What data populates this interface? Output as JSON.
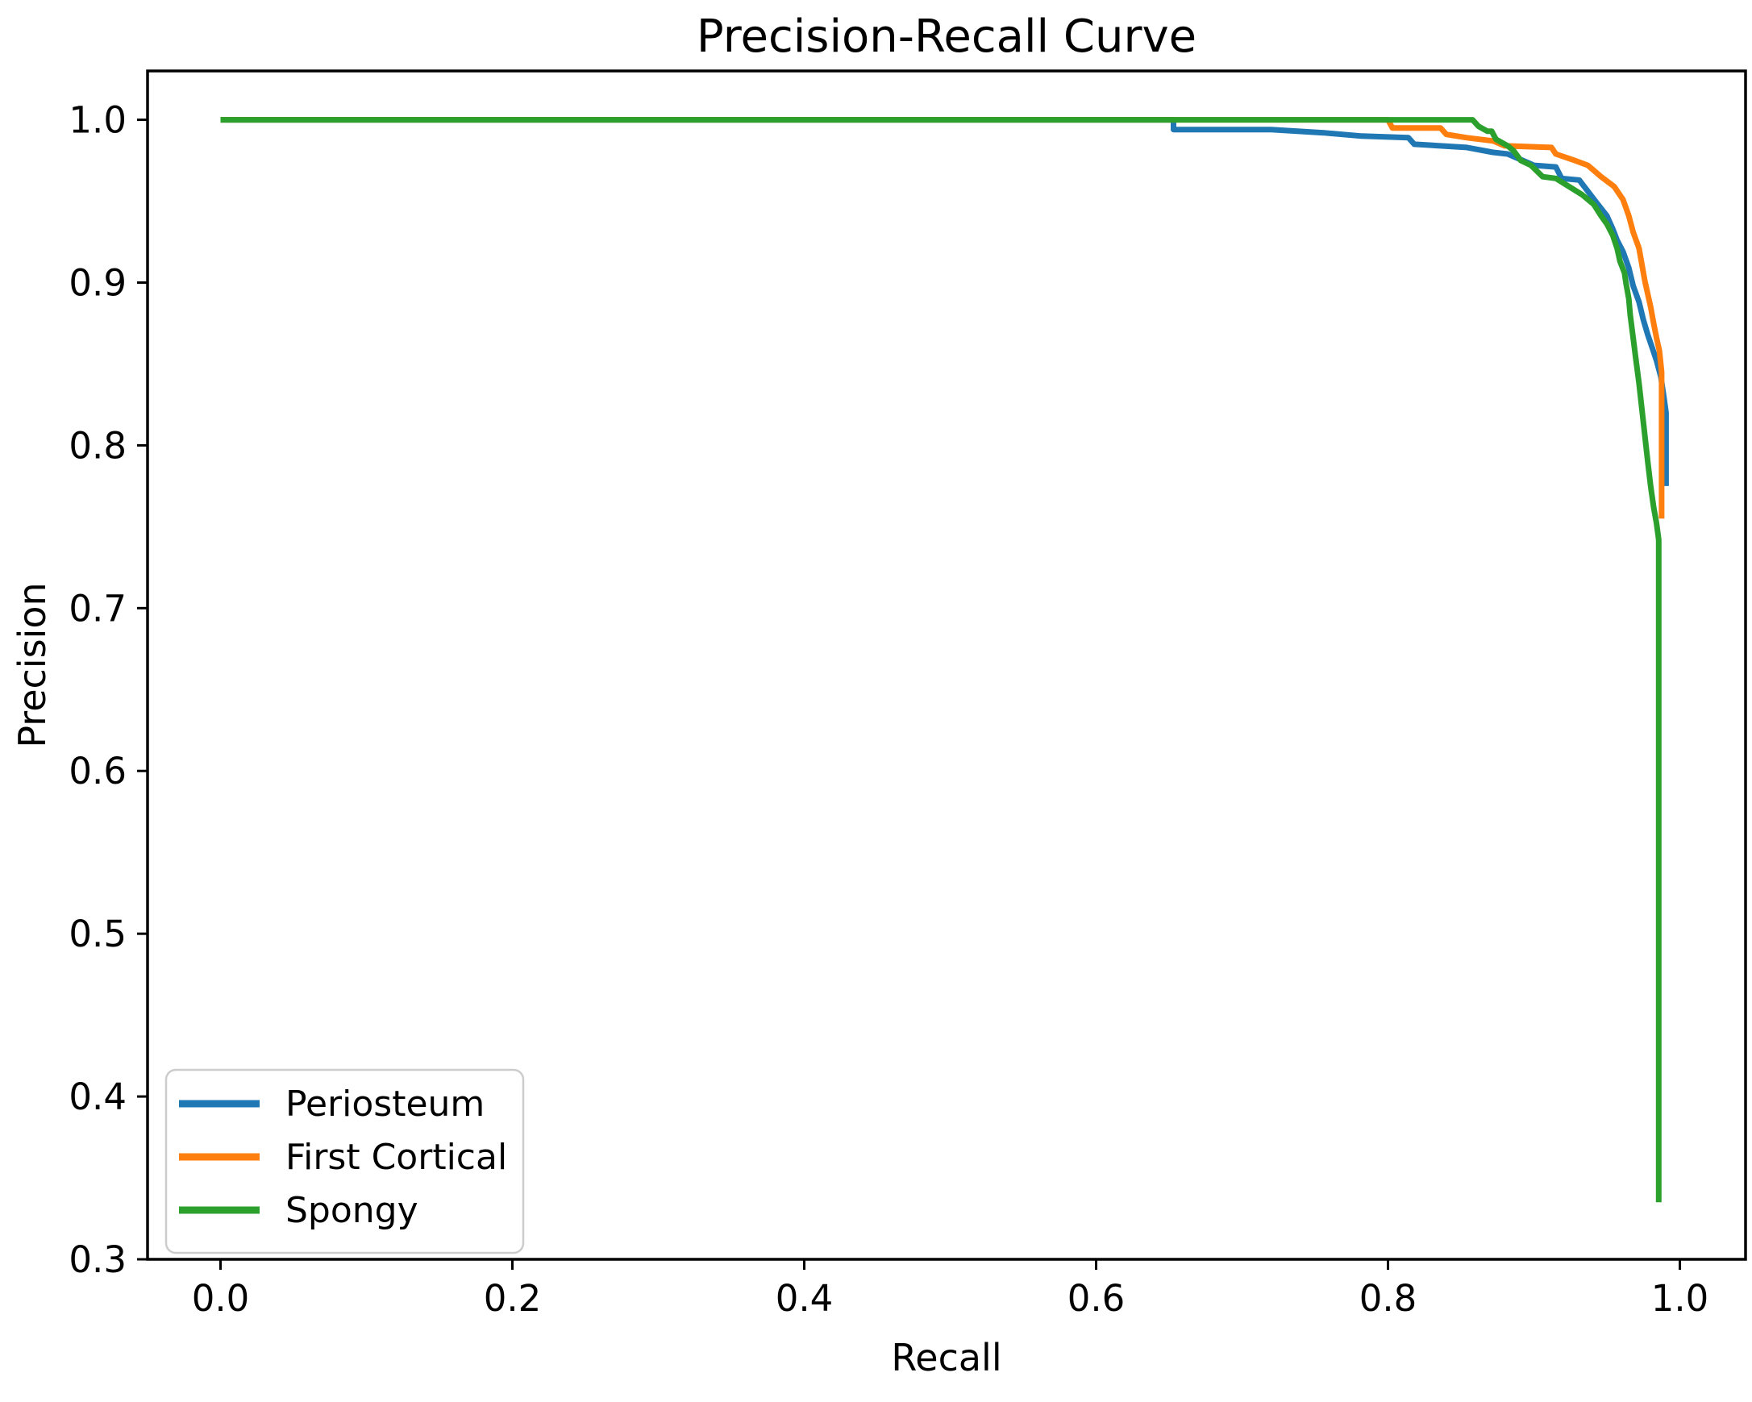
{
  "figure": {
    "background": "#ffffff",
    "text_color": "#000000"
  },
  "chart_data": {
    "type": "line",
    "title": "Precision-Recall Curve",
    "xlabel": "Recall",
    "ylabel": "Precision",
    "xlim": [
      -0.05,
      1.045
    ],
    "ylim": [
      0.3,
      1.03
    ],
    "x_tick_labels": [
      "0.0",
      "0.2",
      "0.4",
      "0.6",
      "0.8",
      "1.0"
    ],
    "x_tick_values": [
      0.0,
      0.2,
      0.4,
      0.6,
      0.8,
      1.0
    ],
    "y_tick_labels": [
      "0.3",
      "0.4",
      "0.5",
      "0.6",
      "0.7",
      "0.8",
      "0.9",
      "1.0"
    ],
    "y_tick_values": [
      0.3,
      0.4,
      0.5,
      0.6,
      0.7,
      0.8,
      0.9,
      1.0
    ],
    "grid": false,
    "legend": {
      "position": "lower left",
      "entries": [
        "Periosteum",
        "First Cortical",
        "Spongy"
      ]
    },
    "series": [
      {
        "name": "Periosteum",
        "color": "#1f77b4",
        "points": [
          [
            0.0,
            1.0
          ],
          [
            0.653,
            1.0
          ],
          [
            0.653,
            0.994
          ],
          [
            0.72,
            0.994
          ],
          [
            0.756,
            0.992
          ],
          [
            0.782,
            0.99
          ],
          [
            0.814,
            0.989
          ],
          [
            0.818,
            0.985
          ],
          [
            0.854,
            0.983
          ],
          [
            0.872,
            0.98
          ],
          [
            0.882,
            0.979
          ],
          [
            0.895,
            0.974
          ],
          [
            0.9,
            0.972
          ],
          [
            0.915,
            0.971
          ],
          [
            0.919,
            0.964
          ],
          [
            0.931,
            0.963
          ],
          [
            0.937,
            0.956
          ],
          [
            0.943,
            0.949
          ],
          [
            0.95,
            0.941
          ],
          [
            0.954,
            0.933
          ],
          [
            0.957,
            0.926
          ],
          [
            0.961,
            0.919
          ],
          [
            0.965,
            0.909
          ],
          [
            0.968,
            0.898
          ],
          [
            0.972,
            0.888
          ],
          [
            0.975,
            0.877
          ],
          [
            0.978,
            0.868
          ],
          [
            0.981,
            0.86
          ],
          [
            0.984,
            0.852
          ],
          [
            0.987,
            0.842
          ],
          [
            0.989,
            0.83
          ],
          [
            0.9905,
            0.82
          ],
          [
            0.9905,
            0.775
          ]
        ]
      },
      {
        "name": "First Cortical",
        "color": "#ff7f0e",
        "points": [
          [
            0.0,
            1.0
          ],
          [
            0.8,
            1.0
          ],
          [
            0.803,
            0.995
          ],
          [
            0.836,
            0.995
          ],
          [
            0.84,
            0.991
          ],
          [
            0.854,
            0.989
          ],
          [
            0.872,
            0.987
          ],
          [
            0.88,
            0.984
          ],
          [
            0.912,
            0.983
          ],
          [
            0.915,
            0.979
          ],
          [
            0.928,
            0.975
          ],
          [
            0.937,
            0.972
          ],
          [
            0.946,
            0.965
          ],
          [
            0.955,
            0.959
          ],
          [
            0.961,
            0.951
          ],
          [
            0.965,
            0.941
          ],
          [
            0.968,
            0.931
          ],
          [
            0.972,
            0.921
          ],
          [
            0.974,
            0.911
          ],
          [
            0.976,
            0.901
          ],
          [
            0.978,
            0.893
          ],
          [
            0.98,
            0.885
          ],
          [
            0.982,
            0.875
          ],
          [
            0.984,
            0.866
          ],
          [
            0.986,
            0.858
          ],
          [
            0.9875,
            0.845
          ],
          [
            0.9875,
            0.755
          ]
        ]
      },
      {
        "name": "Spongy",
        "color": "#2ca02c",
        "points": [
          [
            0.0,
            1.0
          ],
          [
            0.858,
            1.0
          ],
          [
            0.862,
            0.996
          ],
          [
            0.868,
            0.993
          ],
          [
            0.871,
            0.993
          ],
          [
            0.874,
            0.988
          ],
          [
            0.882,
            0.984
          ],
          [
            0.886,
            0.981
          ],
          [
            0.891,
            0.975
          ],
          [
            0.898,
            0.972
          ],
          [
            0.906,
            0.965
          ],
          [
            0.915,
            0.964
          ],
          [
            0.924,
            0.959
          ],
          [
            0.933,
            0.954
          ],
          [
            0.941,
            0.948
          ],
          [
            0.946,
            0.941
          ],
          [
            0.95,
            0.936
          ],
          [
            0.954,
            0.929
          ],
          [
            0.957,
            0.921
          ],
          [
            0.959,
            0.913
          ],
          [
            0.962,
            0.906
          ],
          [
            0.963,
            0.9
          ],
          [
            0.965,
            0.89
          ],
          [
            0.966,
            0.88
          ],
          [
            0.968,
            0.866
          ],
          [
            0.97,
            0.852
          ],
          [
            0.972,
            0.838
          ],
          [
            0.974,
            0.822
          ],
          [
            0.976,
            0.806
          ],
          [
            0.978,
            0.79
          ],
          [
            0.98,
            0.775
          ],
          [
            0.982,
            0.762
          ],
          [
            0.984,
            0.752
          ],
          [
            0.9855,
            0.742
          ],
          [
            0.9855,
            0.335
          ]
        ]
      }
    ]
  }
}
